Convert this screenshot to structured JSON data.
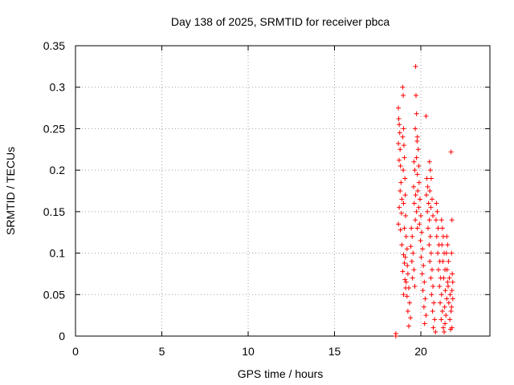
{
  "chart_data": {
    "type": "scatter",
    "title": "Day 138 of 2025, SRMTID for receiver pbca",
    "xlabel": "GPS time / hours",
    "ylabel": "SRMTID / TECUs",
    "xlim": [
      0,
      24
    ],
    "ylim": [
      0,
      0.35
    ],
    "xticks": [
      0,
      5,
      10,
      15,
      20
    ],
    "yticks": [
      0,
      0.05,
      0.1,
      0.15,
      0.2,
      0.25,
      0.3,
      0.35
    ],
    "xtick_labels": [
      "0",
      "5",
      "10",
      "15",
      "20"
    ],
    "ytick_labels": [
      "0",
      "0.05",
      "0.1",
      "0.15",
      "0.2",
      "0.25",
      "0.3",
      "0.35"
    ],
    "grid": true,
    "marker": "+",
    "color": "#ff0000",
    "series": [
      {
        "name": "SRMTID",
        "points": [
          [
            18.55,
            0.0
          ],
          [
            18.55,
            0.003
          ],
          [
            18.7,
            0.275
          ],
          [
            18.72,
            0.262
          ],
          [
            18.75,
            0.255
          ],
          [
            18.78,
            0.245
          ],
          [
            18.7,
            0.232
          ],
          [
            18.8,
            0.225
          ],
          [
            18.74,
            0.212
          ],
          [
            18.82,
            0.205
          ],
          [
            18.85,
            0.185
          ],
          [
            18.8,
            0.175
          ],
          [
            18.9,
            0.165
          ],
          [
            18.75,
            0.155
          ],
          [
            18.88,
            0.148
          ],
          [
            18.7,
            0.135
          ],
          [
            18.82,
            0.128
          ],
          [
            18.9,
            0.11
          ],
          [
            18.95,
            0.3
          ],
          [
            18.98,
            0.29
          ],
          [
            19.0,
            0.25
          ],
          [
            18.95,
            0.24
          ],
          [
            19.02,
            0.23
          ],
          [
            19.05,
            0.215
          ],
          [
            18.98,
            0.2
          ],
          [
            19.08,
            0.19
          ],
          [
            19.1,
            0.17
          ],
          [
            19.0,
            0.16
          ],
          [
            19.12,
            0.145
          ],
          [
            19.05,
            0.13
          ],
          [
            19.15,
            0.12
          ],
          [
            19.2,
            0.105
          ],
          [
            19.1,
            0.095
          ],
          [
            19.22,
            0.085
          ],
          [
            19.25,
            0.075
          ],
          [
            19.15,
            0.065
          ],
          [
            19.3,
            0.058
          ],
          [
            19.2,
            0.048
          ],
          [
            19.35,
            0.04
          ],
          [
            19.25,
            0.03
          ],
          [
            19.4,
            0.022
          ],
          [
            19.3,
            0.012
          ],
          [
            19.0,
            0.098
          ],
          [
            19.05,
            0.088
          ],
          [
            18.95,
            0.078
          ],
          [
            19.08,
            0.068
          ],
          [
            19.12,
            0.058
          ],
          [
            19.0,
            0.05
          ],
          [
            19.45,
            0.13
          ],
          [
            19.5,
            0.12
          ],
          [
            19.42,
            0.108
          ],
          [
            19.55,
            0.1
          ],
          [
            19.48,
            0.09
          ],
          [
            19.6,
            0.08
          ],
          [
            19.52,
            0.07
          ],
          [
            19.65,
            0.06
          ],
          [
            19.7,
            0.325
          ],
          [
            19.72,
            0.29
          ],
          [
            19.75,
            0.268
          ],
          [
            19.68,
            0.25
          ],
          [
            19.8,
            0.24
          ],
          [
            19.78,
            0.235
          ],
          [
            19.85,
            0.225
          ],
          [
            19.75,
            0.215
          ],
          [
            19.88,
            0.205
          ],
          [
            19.8,
            0.195
          ],
          [
            19.9,
            0.185
          ],
          [
            19.82,
            0.175
          ],
          [
            19.95,
            0.165
          ],
          [
            19.88,
            0.155
          ],
          [
            20.0,
            0.145
          ],
          [
            19.92,
            0.135
          ],
          [
            20.05,
            0.125
          ],
          [
            19.98,
            0.115
          ],
          [
            20.1,
            0.105
          ],
          [
            20.02,
            0.095
          ],
          [
            20.15,
            0.085
          ],
          [
            20.08,
            0.075
          ],
          [
            20.2,
            0.065
          ],
          [
            20.12,
            0.055
          ],
          [
            20.25,
            0.045
          ],
          [
            20.18,
            0.035
          ],
          [
            20.3,
            0.025
          ],
          [
            20.22,
            0.015
          ],
          [
            19.6,
            0.21
          ],
          [
            19.65,
            0.2
          ],
          [
            19.58,
            0.18
          ],
          [
            19.7,
            0.17
          ],
          [
            19.62,
            0.16
          ],
          [
            19.75,
            0.15
          ],
          [
            19.68,
            0.14
          ],
          [
            19.8,
            0.13
          ],
          [
            20.3,
            0.265
          ],
          [
            20.35,
            0.19
          ],
          [
            20.4,
            0.18
          ],
          [
            20.32,
            0.17
          ],
          [
            20.45,
            0.16
          ],
          [
            20.38,
            0.15
          ],
          [
            20.5,
            0.14
          ],
          [
            20.42,
            0.13
          ],
          [
            20.55,
            0.12
          ],
          [
            20.48,
            0.11
          ],
          [
            20.6,
            0.1
          ],
          [
            20.52,
            0.09
          ],
          [
            20.65,
            0.08
          ],
          [
            20.58,
            0.07
          ],
          [
            20.7,
            0.06
          ],
          [
            20.62,
            0.05
          ],
          [
            20.75,
            0.04
          ],
          [
            20.68,
            0.03
          ],
          [
            20.8,
            0.02
          ],
          [
            20.72,
            0.01
          ],
          [
            20.85,
            0.005
          ],
          [
            20.5,
            0.21
          ],
          [
            20.55,
            0.2
          ],
          [
            20.6,
            0.19
          ],
          [
            20.52,
            0.175
          ],
          [
            20.65,
            0.165
          ],
          [
            20.58,
            0.155
          ],
          [
            20.7,
            0.145
          ],
          [
            20.9,
            0.16
          ],
          [
            20.95,
            0.15
          ],
          [
            20.88,
            0.14
          ],
          [
            21.0,
            0.13
          ],
          [
            20.92,
            0.12
          ],
          [
            21.05,
            0.11
          ],
          [
            20.98,
            0.1
          ],
          [
            21.1,
            0.09
          ],
          [
            21.02,
            0.08
          ],
          [
            21.15,
            0.07
          ],
          [
            21.08,
            0.06
          ],
          [
            21.2,
            0.05
          ],
          [
            21.12,
            0.04
          ],
          [
            21.25,
            0.03
          ],
          [
            21.18,
            0.02
          ],
          [
            21.3,
            0.01
          ],
          [
            21.35,
            0.005
          ],
          [
            21.4,
            0.015
          ],
          [
            21.45,
            0.025
          ],
          [
            21.38,
            0.035
          ],
          [
            21.5,
            0.045
          ],
          [
            21.42,
            0.055
          ],
          [
            21.55,
            0.065
          ],
          [
            21.2,
            0.14
          ],
          [
            21.25,
            0.13
          ],
          [
            21.3,
            0.12
          ],
          [
            21.22,
            0.11
          ],
          [
            21.35,
            0.1
          ],
          [
            21.28,
            0.09
          ],
          [
            21.4,
            0.08
          ],
          [
            21.32,
            0.07
          ],
          [
            21.5,
            0.12
          ],
          [
            21.55,
            0.11
          ],
          [
            21.48,
            0.1
          ],
          [
            21.6,
            0.09
          ],
          [
            21.52,
            0.08
          ],
          [
            21.65,
            0.07
          ],
          [
            21.58,
            0.06
          ],
          [
            21.7,
            0.05
          ],
          [
            21.62,
            0.04
          ],
          [
            21.75,
            0.03
          ],
          [
            21.68,
            0.02
          ],
          [
            21.8,
            0.01
          ],
          [
            21.72,
            0.008
          ],
          [
            21.75,
            0.222
          ],
          [
            21.8,
            0.14
          ],
          [
            21.78,
            0.1
          ],
          [
            21.82,
            0.075
          ],
          [
            21.85,
            0.065
          ],
          [
            21.8,
            0.055
          ],
          [
            21.85,
            0.045
          ],
          [
            21.78,
            0.035
          ]
        ]
      }
    ]
  }
}
